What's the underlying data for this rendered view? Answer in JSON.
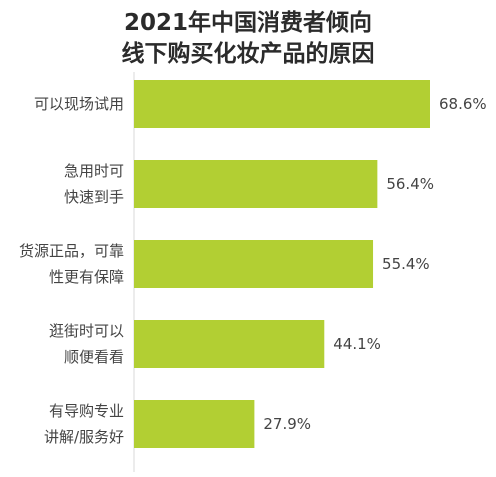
{
  "chart_data": {
    "type": "bar",
    "orientation": "horizontal",
    "title": [
      "2021年中国消费者倾向",
      "线下购买化妆产品的原因"
    ],
    "categories": [
      [
        "可以现场试用"
      ],
      [
        "急用时可",
        "快速到手"
      ],
      [
        "货源正品，可靠",
        "性更有保障"
      ],
      [
        "逛街时可以",
        "顺便看看"
      ],
      [
        "有导购专业",
        "讲解/服务好"
      ]
    ],
    "values": [
      68.6,
      56.4,
      55.4,
      44.1,
      27.9
    ],
    "value_labels": [
      "68.6%",
      "56.4%",
      "55.4%",
      "44.1%",
      "27.9%"
    ],
    "unit": "%",
    "xlim": [
      0,
      68.6
    ],
    "bar_color": "#b2cf33",
    "grid": false,
    "legend": "none"
  }
}
